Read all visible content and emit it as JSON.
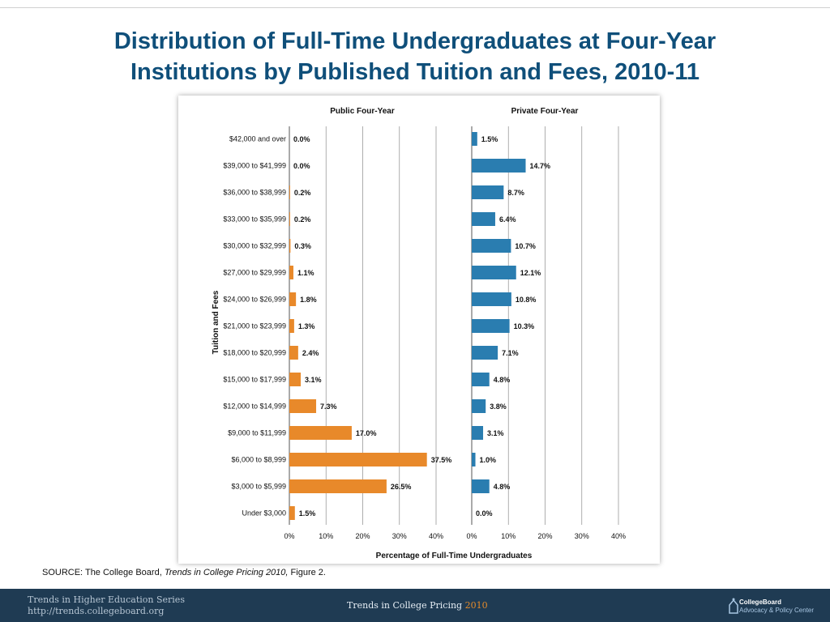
{
  "slide": {
    "title_line1": "Distribution of Full-Time Undergraduates at Four-Year",
    "title_line2": "Institutions by Published Tuition and Fees, 2010-11",
    "source_prefix": "SOURCE: The College Board, ",
    "source_italic": "Trends in College Pricing 2010,",
    "source_suffix": " Figure 2."
  },
  "footer": {
    "series_line1": "Trends in Higher Education Series",
    "series_line2": "http://trends.collegeboard.org",
    "center_text": "Trends in College Pricing ",
    "center_year": "2010",
    "logo_name": "CollegeBoard",
    "logo_sub": "Advocacy & Policy Center"
  },
  "colors": {
    "title": "#0f4f7a",
    "public": "#e8892a",
    "private": "#2a7db0",
    "footer_bg": "#1f3b53"
  },
  "chart_data": {
    "type": "bar",
    "orientation": "horizontal",
    "ylabel": "Tuition and Fees",
    "xlabel": "Percentage of Full-Time Undergraduates",
    "xlim": [
      0,
      40
    ],
    "ticks": [
      "0%",
      "10%",
      "20%",
      "30%",
      "40%"
    ],
    "grid": true,
    "categories": [
      "$42,000 and over",
      "$39,000 to $41,999",
      "$36,000 to $38,999",
      "$33,000 to $35,999",
      "$30,000 to $32,999",
      "$27,000 to $29,999",
      "$24,000 to $26,999",
      "$21,000 to $23,999",
      "$18,000 to $20,999",
      "$15,000 to $17,999",
      "$12,000 to $14,999",
      "$9,000 to $11,999",
      "$6,000 to $8,999",
      "$3,000 to $5,999",
      "Under $3,000"
    ],
    "series": [
      {
        "name": "Public Four-Year",
        "values": [
          0.0,
          0.0,
          0.2,
          0.2,
          0.3,
          1.1,
          1.8,
          1.3,
          2.4,
          3.1,
          7.3,
          17.0,
          37.5,
          26.5,
          1.5
        ],
        "labels": [
          "0.0%",
          "0.0%",
          "0.2%",
          "0.2%",
          "0.3%",
          "1.1%",
          "1.8%",
          "1.3%",
          "2.4%",
          "3.1%",
          "7.3%",
          "17.0%",
          "37.5%",
          "26.5%",
          "1.5%"
        ]
      },
      {
        "name": "Private Four-Year",
        "values": [
          1.5,
          14.7,
          8.7,
          6.4,
          10.7,
          12.1,
          10.8,
          10.3,
          7.1,
          4.8,
          3.8,
          3.1,
          1.0,
          4.8,
          0.0
        ],
        "labels": [
          "1.5%",
          "14.7%",
          "8.7%",
          "6.4%",
          "10.7%",
          "12.1%",
          "10.8%",
          "10.3%",
          "7.1%",
          "4.8%",
          "3.8%",
          "3.1%",
          "1.0%",
          "4.8%",
          "0.0%"
        ]
      }
    ]
  }
}
